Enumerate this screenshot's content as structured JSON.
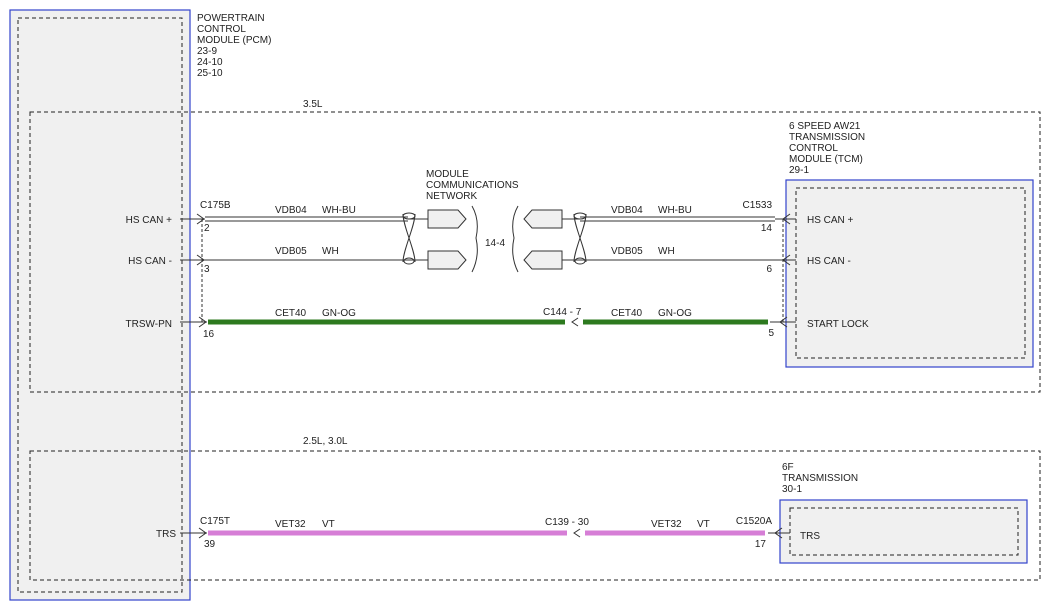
{
  "pcm": {
    "lines": [
      "POWERTRAIN",
      "CONTROL",
      "MODULE (PCM)",
      "23-9",
      "24-10",
      "25-10"
    ],
    "pins": [
      "HS CAN +",
      "HS CAN -",
      "TRSW-PN",
      "TRS"
    ]
  },
  "regions": [
    {
      "label": "3.5L"
    },
    {
      "label": "2.5L, 3.0L"
    }
  ],
  "tcm": {
    "lines": [
      "6 SPEED AW21",
      "TRANSMISSION",
      "CONTROL",
      "MODULE (TCM)",
      "29-1"
    ],
    "pins": [
      "HS CAN +",
      "HS CAN -",
      "START LOCK"
    ]
  },
  "transmission_6f": {
    "lines": [
      "6F",
      "TRANSMISSION",
      "30-1"
    ],
    "pins": [
      "TRS"
    ]
  },
  "network": {
    "lines": [
      "MODULE",
      "COMMUNICATIONS",
      "NETWORK"
    ],
    "ref": "14-4"
  },
  "connectors": {
    "c175b": {
      "name": "C175B",
      "pins": [
        "2",
        "3",
        "16"
      ]
    },
    "c1533": {
      "name": "C1533",
      "pins": [
        "14",
        "6",
        "5"
      ]
    },
    "c144": {
      "name": "C144 - 7"
    },
    "c175t": {
      "name": "C175T",
      "pins": [
        "39"
      ]
    },
    "c139": {
      "name": "C139 - 30"
    },
    "c1520a": {
      "name": "C1520A",
      "pins": [
        "17"
      ]
    }
  },
  "wires": [
    {
      "circuit": "VDB04",
      "color": "WH-BU"
    },
    {
      "circuit": "VDB05",
      "color": "WH"
    },
    {
      "circuit": "VDB04",
      "color": "WH-BU"
    },
    {
      "circuit": "VDB05",
      "color": "WH"
    },
    {
      "circuit": "CET40",
      "color": "GN-OG"
    },
    {
      "circuit": "CET40",
      "color": "GN-OG"
    },
    {
      "circuit": "VET32",
      "color": "VT"
    },
    {
      "circuit": "VET32",
      "color": "VT"
    }
  ]
}
